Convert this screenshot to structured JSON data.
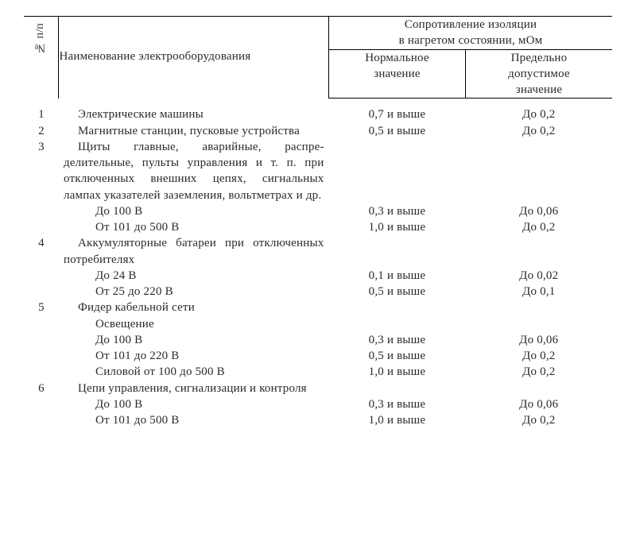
{
  "colors": {
    "text": "#2a2a2a",
    "rule": "#000000",
    "bg": "#ffffff"
  },
  "fonts": {
    "family": "Times New Roman",
    "body_size_pt": 11,
    "header_size_pt": 11
  },
  "header": {
    "num": "№ п/п",
    "name": "Наименование электрооборудования",
    "group": "Сопротивление изоляции\nв нагретом состоянии, мОм",
    "norm": "Нормальное\nзначение",
    "lim": "Предельно\nдопустимое\nзначение"
  },
  "rows": [
    {
      "n": "1",
      "name": "Электрические машины",
      "norm": "0,7 и выше",
      "lim": "До 0,2"
    },
    {
      "n": "2",
      "name": "Магнитные станции, пусковые уст­ройства",
      "norm": "0,5 и выше",
      "lim": "До 0,2"
    },
    {
      "n": "3",
      "name": "Щиты главные, аварийные, распре­делительные, пульты управления и т. п. при отключенных внешних це­пях, сигнальных лампах указателей заземления, вольтметрах и др.",
      "norm": "",
      "lim": ""
    },
    {
      "n": "",
      "name_sub": "До 100 В",
      "norm": "0,3 и выше",
      "lim": "До 0,06"
    },
    {
      "n": "",
      "name_sub": "От 101 до 500 В",
      "norm": "1,0 и выше",
      "lim": "До 0,2"
    },
    {
      "n": "4",
      "name": "Аккумуляторные батареи при от­ключенных потребителях",
      "norm": "",
      "lim": ""
    },
    {
      "n": "",
      "name_sub": "До 24 В",
      "norm": "0,1 и выше",
      "lim": "До 0,02"
    },
    {
      "n": "",
      "name_sub": "От 25 до 220 В",
      "norm": "0,5 и выше",
      "lim": "До 0,1"
    },
    {
      "n": "5",
      "name": "Фидер кабельной сети",
      "norm": "",
      "lim": ""
    },
    {
      "n": "",
      "name_sub": "Освещение",
      "norm": "",
      "lim": ""
    },
    {
      "n": "",
      "name_sub": "До 100 В",
      "norm": "0,3 и выше",
      "lim": "До 0,06"
    },
    {
      "n": "",
      "name_sub": "От 101 до 220 В",
      "norm": "0,5 и выше",
      "lim": "До 0,2"
    },
    {
      "n": "",
      "name_sub": "Силовой от 100 до 500 В",
      "norm": "1,0 и выше",
      "lim": "До 0,2"
    },
    {
      "n": "6",
      "name": "Цепи управления, сигнализации и контроля",
      "norm": "",
      "lim": ""
    },
    {
      "n": "",
      "name_sub": "До 100 В",
      "norm": "0,3 и выше",
      "lim": "До 0,06"
    },
    {
      "n": "",
      "name_sub": "От 101 до 500 В",
      "norm": "1,0 и выше",
      "lim": "До 0,2"
    }
  ]
}
